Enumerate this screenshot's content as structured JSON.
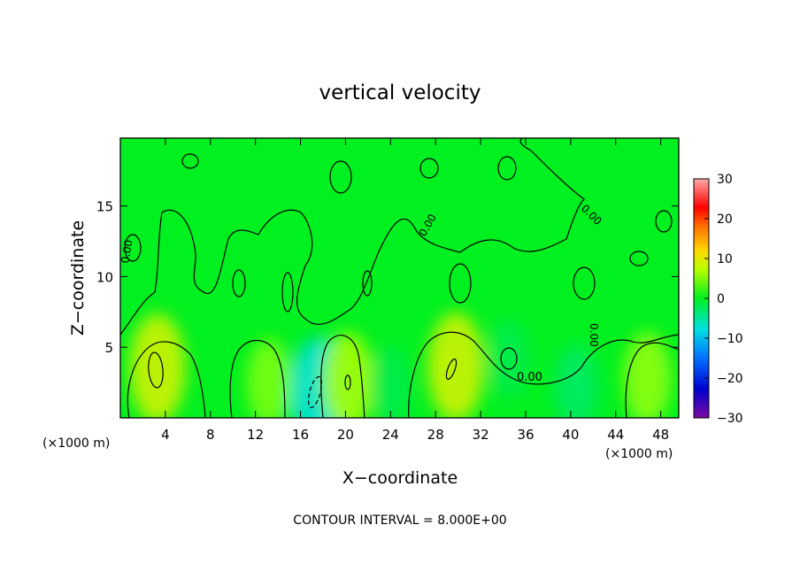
{
  "chart_data": {
    "type": "heatmap",
    "title": "vertical velocity",
    "xlabel": "X−coordinate",
    "ylabel": "Z−coordinate",
    "x_unit_label": "(×1000 m)",
    "x_unit_label_right": "(×1000 m)",
    "xlim": [
      0,
      49.6
    ],
    "ylim": [
      0,
      19.8
    ],
    "x_ticks": [
      4,
      8,
      12,
      16,
      20,
      24,
      28,
      32,
      36,
      40,
      44,
      48
    ],
    "y_ticks": [
      5,
      10,
      15
    ],
    "colorbar": {
      "range": [
        -30,
        30
      ],
      "ticks": [
        30,
        20,
        10,
        0,
        -10,
        -20,
        -30
      ],
      "tick_labels": [
        "30",
        "20",
        "10",
        "0",
        "−10",
        "−20",
        "−30"
      ]
    },
    "contour_labels": [
      "0.00",
      "0.00",
      "0.00",
      "0.00",
      "0.00"
    ],
    "footer": "CONTOUR INTERVAL = 8.000E+00",
    "background_value": 0,
    "features": [
      {
        "x": 3.3,
        "z": 3.5,
        "value": 8,
        "kind": "updraft"
      },
      {
        "x": 17.6,
        "z": 1.8,
        "value": -8,
        "kind": "downdraft"
      },
      {
        "x": 20.2,
        "z": 2.6,
        "value": 6,
        "kind": "updraft"
      },
      {
        "x": 29.8,
        "z": 3.6,
        "value": 8,
        "kind": "updraft"
      },
      {
        "x": 13.2,
        "z": 2.5,
        "value": 4,
        "kind": "updraft"
      },
      {
        "x": 46.8,
        "z": 2.8,
        "value": 5,
        "kind": "updraft"
      },
      {
        "x": 34.5,
        "z": 4.2,
        "value": -2,
        "kind": "downdraft"
      },
      {
        "x": 40.5,
        "z": 2.2,
        "value": -3,
        "kind": "downdraft"
      },
      {
        "x": 24.0,
        "z": 2.3,
        "value": -2,
        "kind": "downdraft"
      }
    ]
  }
}
